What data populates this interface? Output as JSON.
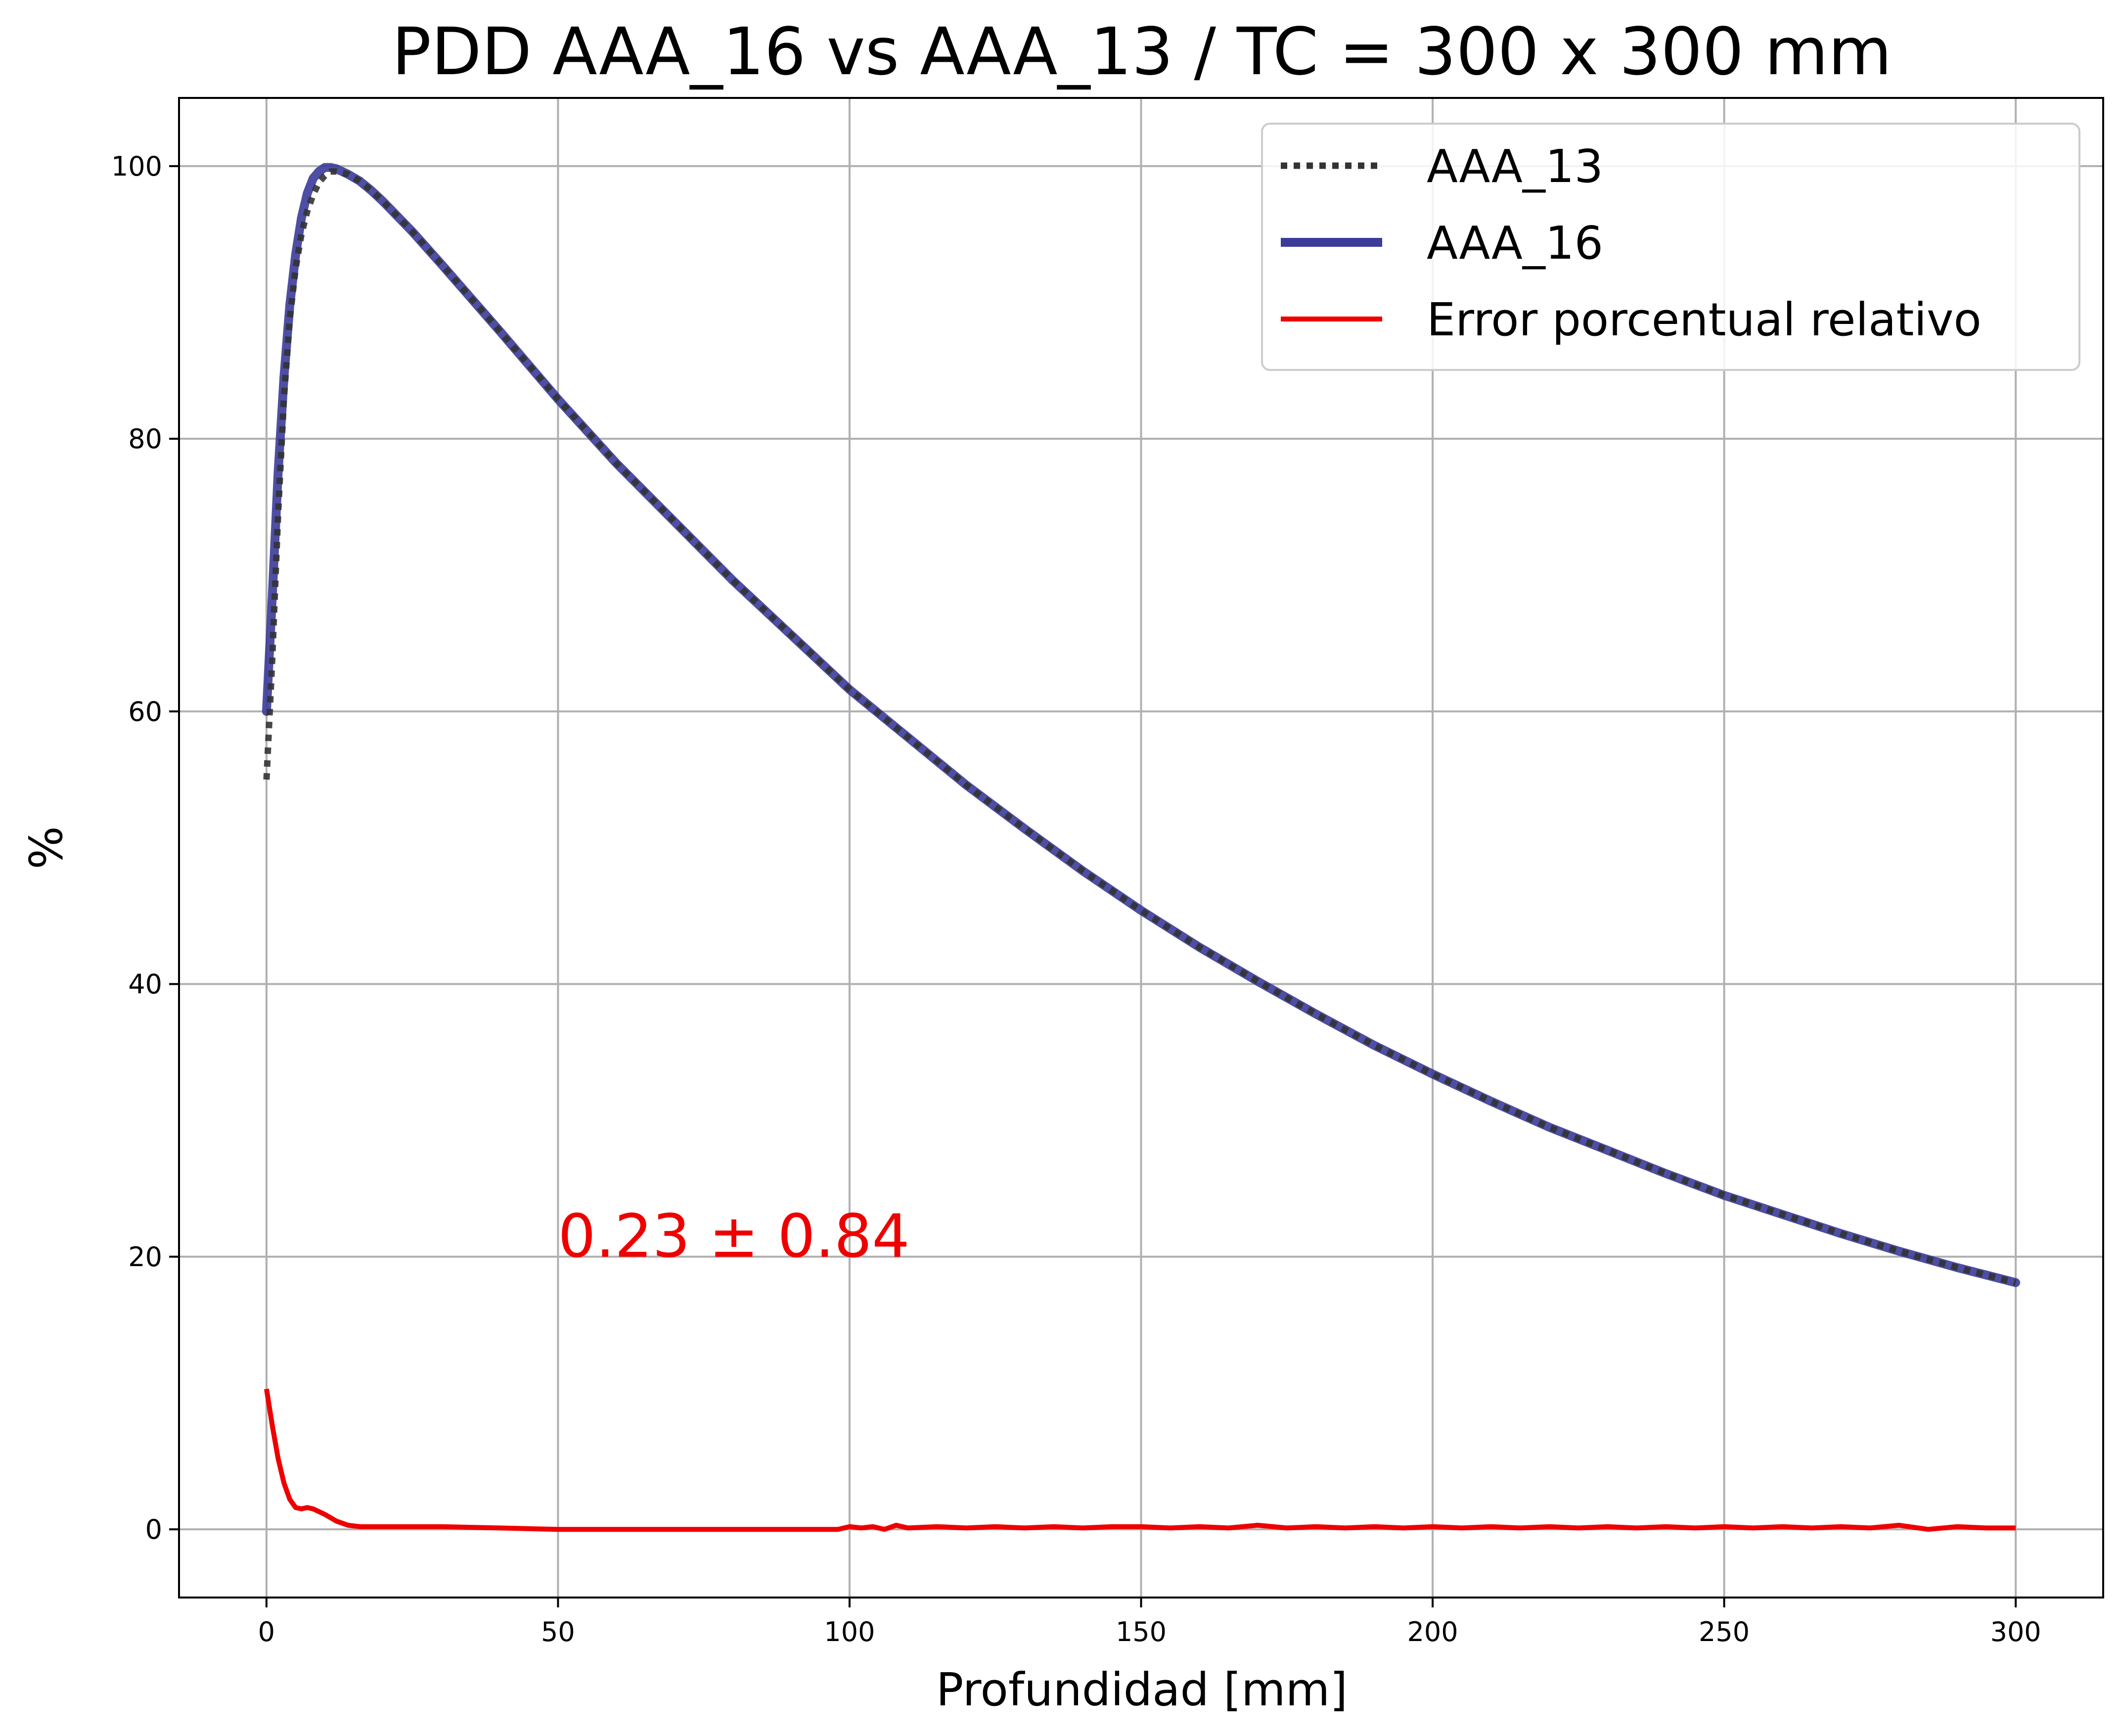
{
  "colors": {
    "aaa13": "#333333",
    "aaa16": "#3b3b9a",
    "error": "#ee0000",
    "grid": "#b0b0b0"
  },
  "chart_data": {
    "type": "line",
    "title": "PDD AAA_16 vs AAA_13 / TC = 300 x 300 mm",
    "xlabel": "Profundidad [mm]",
    "ylabel": "%",
    "xlim": [
      -15,
      315
    ],
    "ylim": [
      -5,
      105
    ],
    "xticks": [
      0,
      50,
      100,
      150,
      200,
      250,
      300
    ],
    "yticks": [
      0,
      20,
      40,
      60,
      80,
      100
    ],
    "grid": true,
    "legend_position": "top-right",
    "annotation": {
      "text": "0.23 ± 0.84",
      "x": 50,
      "y": 20
    },
    "series": [
      {
        "name": "AAA_13",
        "style": "dotted",
        "x": [
          0,
          1,
          2,
          3,
          4,
          5,
          6,
          7,
          8,
          9,
          10,
          11,
          12,
          14,
          16,
          18,
          20,
          25,
          30,
          40,
          50,
          60,
          70,
          80,
          90,
          100,
          110,
          120,
          130,
          140,
          150,
          160,
          170,
          180,
          190,
          200,
          210,
          220,
          230,
          240,
          250,
          260,
          270,
          280,
          290,
          300
        ],
        "values": [
          55.0,
          64.0,
          74.5,
          83.0,
          88.8,
          92.5,
          95.0,
          96.7,
          97.9,
          98.8,
          99.3,
          99.6,
          99.6,
          99.4,
          98.9,
          98.2,
          97.4,
          95.2,
          92.8,
          87.9,
          82.9,
          78.2,
          73.9,
          69.6,
          65.6,
          61.6,
          58.1,
          54.6,
          51.4,
          48.3,
          45.4,
          42.7,
          40.2,
          37.8,
          35.5,
          33.4,
          31.4,
          29.5,
          27.8,
          26.1,
          24.5,
          23.1,
          21.7,
          20.4,
          19.2,
          18.1
        ]
      },
      {
        "name": "AAA_16",
        "style": "solid",
        "x": [
          0,
          1,
          2,
          3,
          4,
          5,
          6,
          7,
          8,
          9,
          10,
          11,
          12,
          14,
          16,
          18,
          20,
          25,
          30,
          40,
          50,
          60,
          70,
          80,
          90,
          100,
          110,
          120,
          130,
          140,
          150,
          160,
          170,
          180,
          190,
          200,
          210,
          220,
          230,
          240,
          250,
          260,
          270,
          280,
          290,
          300
        ],
        "values": [
          60.0,
          68.5,
          77.5,
          84.5,
          89.8,
          93.5,
          96.2,
          98.0,
          99.1,
          99.6,
          99.9,
          99.9,
          99.8,
          99.4,
          98.9,
          98.2,
          97.4,
          95.2,
          92.8,
          87.9,
          82.9,
          78.2,
          73.9,
          69.6,
          65.6,
          61.6,
          58.1,
          54.6,
          51.4,
          48.3,
          45.4,
          42.7,
          40.2,
          37.8,
          35.5,
          33.4,
          31.4,
          29.5,
          27.8,
          26.1,
          24.5,
          23.1,
          21.7,
          20.4,
          19.2,
          18.1
        ]
      },
      {
        "name": "Error porcentual relativo",
        "style": "solid",
        "x": [
          0,
          1,
          2,
          3,
          4,
          5,
          6,
          7,
          8,
          10,
          12,
          14,
          16,
          18,
          20,
          25,
          30,
          40,
          50,
          60,
          70,
          80,
          90,
          98,
          100,
          102,
          104,
          106,
          108,
          110,
          115,
          120,
          125,
          130,
          135,
          140,
          145,
          150,
          155,
          160,
          165,
          170,
          175,
          180,
          185,
          190,
          195,
          200,
          205,
          210,
          215,
          220,
          225,
          230,
          235,
          240,
          245,
          250,
          255,
          260,
          265,
          270,
          275,
          280,
          285,
          290,
          295,
          300
        ],
        "values": [
          10.3,
          7.6,
          5.2,
          3.4,
          2.2,
          1.6,
          1.5,
          1.6,
          1.5,
          1.1,
          0.6,
          0.3,
          0.2,
          0.2,
          0.2,
          0.2,
          0.2,
          0.1,
          0.0,
          0.0,
          0.0,
          0.0,
          0.0,
          0.0,
          0.2,
          0.1,
          0.2,
          0.0,
          0.3,
          0.1,
          0.2,
          0.1,
          0.2,
          0.1,
          0.2,
          0.1,
          0.2,
          0.2,
          0.1,
          0.2,
          0.1,
          0.3,
          0.1,
          0.2,
          0.1,
          0.2,
          0.1,
          0.2,
          0.1,
          0.2,
          0.1,
          0.2,
          0.1,
          0.2,
          0.1,
          0.2,
          0.1,
          0.2,
          0.1,
          0.2,
          0.1,
          0.2,
          0.1,
          0.3,
          0.0,
          0.2,
          0.1,
          0.1
        ]
      }
    ]
  }
}
